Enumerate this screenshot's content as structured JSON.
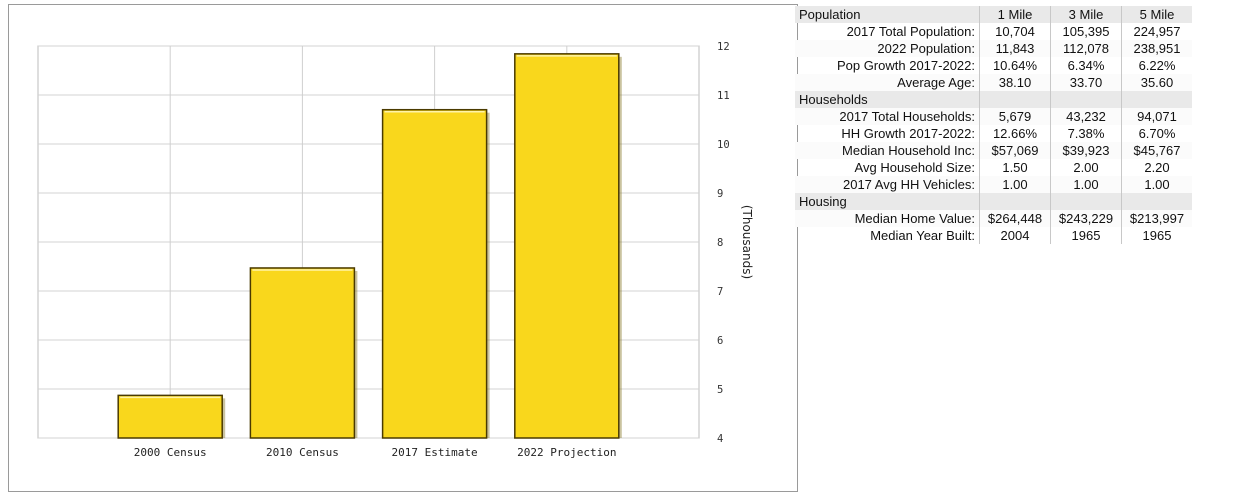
{
  "chart_data": {
    "type": "bar",
    "categories": [
      "2000 Census",
      "2010 Census",
      "2017 Estimate",
      "2022 Projection"
    ],
    "values": [
      4.87,
      7.47,
      10.7,
      11.84
    ],
    "ylabel": "(Thousands)",
    "ylim": [
      4,
      12
    ],
    "yticks": [
      4,
      5,
      6,
      7,
      8,
      9,
      10,
      11,
      12
    ],
    "grid": "vertical",
    "y_axis_position": "right",
    "bar_color": "#F9D71C",
    "bar_edge_color": "#4A3A00"
  },
  "table": {
    "columns": [
      "1 Mile",
      "3 Mile",
      "5 Mile"
    ],
    "sections": [
      {
        "title": "Population",
        "rows": [
          {
            "label": "2017 Total Population:",
            "values": [
              "10,704",
              "105,395",
              "224,957"
            ]
          },
          {
            "label": "2022 Population:",
            "values": [
              "11,843",
              "112,078",
              "238,951"
            ]
          },
          {
            "label": "Pop Growth 2017-2022:",
            "values": [
              "10.64%",
              "6.34%",
              "6.22%"
            ]
          },
          {
            "label": "Average Age:",
            "values": [
              "38.10",
              "33.70",
              "35.60"
            ]
          }
        ]
      },
      {
        "title": "Households",
        "rows": [
          {
            "label": "2017 Total Households:",
            "values": [
              "5,679",
              "43,232",
              "94,071"
            ]
          },
          {
            "label": "HH Growth 2017-2022:",
            "values": [
              "12.66%",
              "7.38%",
              "6.70%"
            ]
          },
          {
            "label": "Median Household Inc:",
            "values": [
              "$57,069",
              "$39,923",
              "$45,767"
            ]
          },
          {
            "label": "Avg Household Size:",
            "values": [
              "1.50",
              "2.00",
              "2.20"
            ]
          },
          {
            "label": "2017 Avg HH Vehicles:",
            "values": [
              "1.00",
              "1.00",
              "1.00"
            ]
          }
        ]
      },
      {
        "title": "Housing",
        "rows": [
          {
            "label": "Median Home Value:",
            "values": [
              "$264,448",
              "$243,229",
              "$213,997"
            ]
          },
          {
            "label": "Median Year Built:",
            "values": [
              "2004",
              "1965",
              "1965"
            ]
          }
        ]
      }
    ]
  }
}
